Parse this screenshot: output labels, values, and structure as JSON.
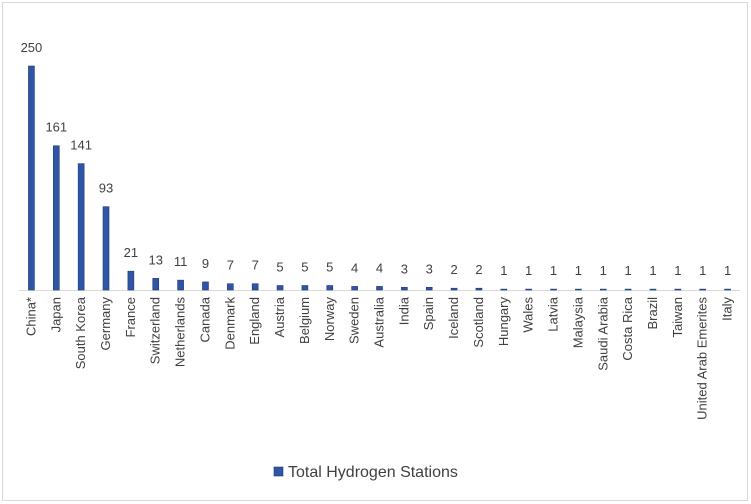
{
  "chart_data": {
    "type": "bar",
    "categories": [
      "China*",
      "Japan",
      "South Korea",
      "Germany",
      "France",
      "Switzerland",
      "Netherlands",
      "Canada",
      "Denmark",
      "England",
      "Austria",
      "Belgium",
      "Norway",
      "Sweden",
      "Australia",
      "India",
      "Spain",
      "Iceland",
      "Scotland",
      "Hungary",
      "Wales",
      "Latvia",
      "Malaysia",
      "Saudi Arabia",
      "Costa Rica",
      "Brazil",
      "Taiwan",
      "United Arab Emerites",
      "Italy"
    ],
    "series": [
      {
        "name": "Total Hydrogen Stations",
        "color": "#2f55a4",
        "values": [
          250,
          161,
          141,
          93,
          21,
          13,
          11,
          9,
          7,
          7,
          5,
          5,
          5,
          4,
          4,
          3,
          3,
          2,
          2,
          1,
          1,
          1,
          1,
          1,
          1,
          1,
          1,
          1,
          1
        ]
      }
    ],
    "legend": "bottom"
  }
}
